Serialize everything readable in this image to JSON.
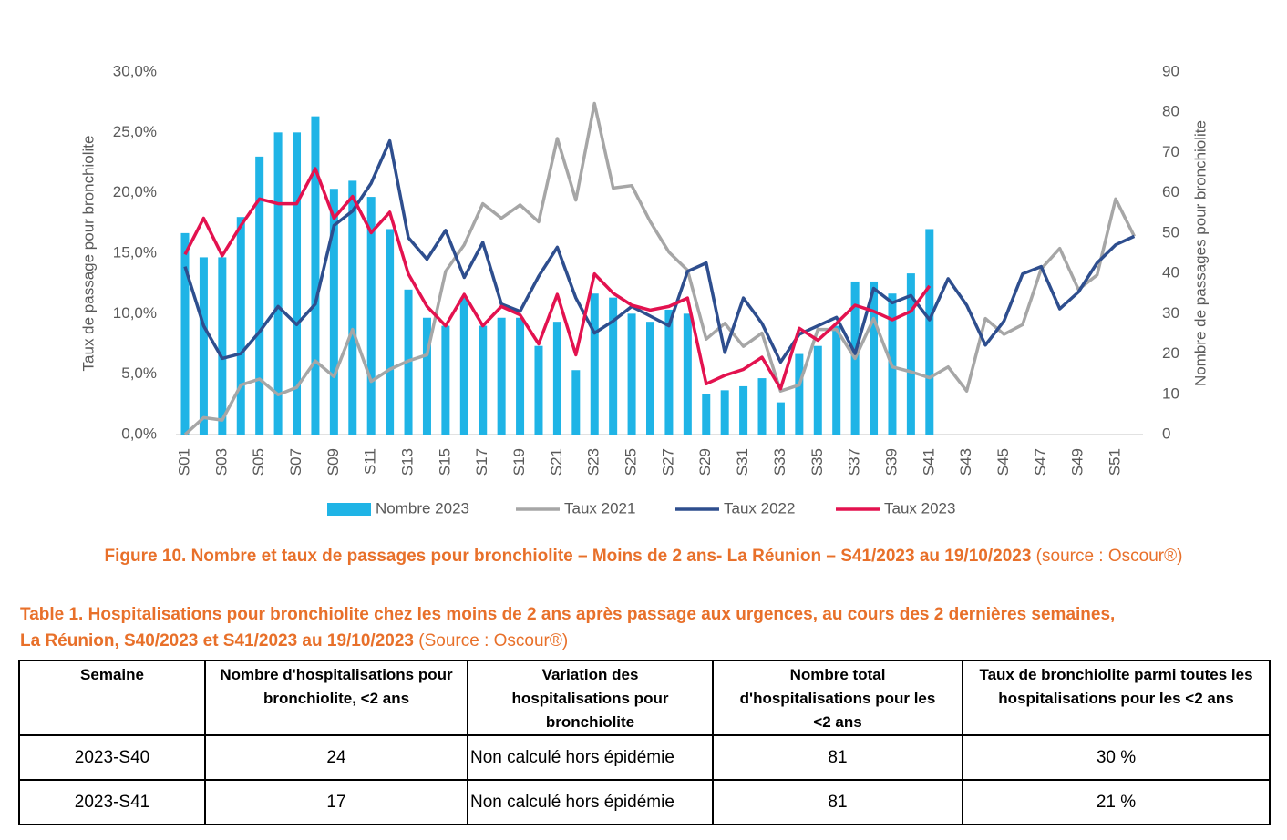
{
  "chart_data": {
    "type": "bar_line",
    "ylabel": "Taux de passage pour bronchiolite",
    "y2label": "Nombre de passages pour bronchiolite",
    "categories": [
      "S01",
      null,
      "S03",
      null,
      "S05",
      null,
      "S07",
      null,
      "S09",
      null,
      "S11",
      null,
      "S13",
      null,
      "S15",
      null,
      "S17",
      null,
      "S19",
      null,
      "S21",
      null,
      "S23",
      null,
      "S25",
      null,
      "S27",
      null,
      "S29",
      null,
      "S31",
      null,
      "S33",
      null,
      "S35",
      null,
      "S37",
      null,
      "S39",
      null,
      "S41",
      null,
      "S43",
      null,
      "S45",
      null,
      "S47",
      null,
      "S49",
      null,
      "S51",
      null
    ],
    "ylim": [
      0,
      30
    ],
    "yticks": [
      {
        "value": 0,
        "label": "0,0%"
      },
      {
        "value": 5,
        "label": "5,0%"
      },
      {
        "value": 10,
        "label": "10,0%"
      },
      {
        "value": 15,
        "label": "15,0%"
      },
      {
        "value": 20,
        "label": "20,0%"
      },
      {
        "value": 25,
        "label": "25,0%"
      },
      {
        "value": 30,
        "label": "30,0%"
      }
    ],
    "y2lim": [
      0,
      90
    ],
    "y2ticks": [
      0,
      10,
      20,
      30,
      40,
      50,
      60,
      70,
      80,
      90
    ],
    "grid": false,
    "legend": "bottom",
    "series": [
      {
        "name": "Nombre 2023",
        "type": "bar",
        "axis": "y2",
        "color": "#1fb4e6",
        "values": [
          50,
          44,
          44,
          54,
          69,
          75,
          75,
          79,
          61,
          63,
          59,
          51,
          36,
          29,
          27,
          34,
          27,
          29,
          29,
          22,
          28,
          16,
          35,
          34,
          30,
          28,
          31,
          30,
          10,
          11,
          12,
          14,
          8,
          20,
          22,
          27,
          38,
          38,
          35,
          40,
          51,
          null,
          null,
          null,
          null,
          null,
          null,
          null,
          null,
          null,
          null,
          null
        ]
      },
      {
        "name": "Taux 2021",
        "type": "line",
        "color": "#a6a6a6",
        "values": [
          0,
          1.4,
          1.2,
          4.1,
          4.6,
          3.3,
          3.9,
          6.1,
          4.8,
          8.7,
          4.4,
          5.4,
          6.1,
          6.6,
          13.5,
          15.7,
          19.1,
          17.9,
          19.0,
          17.6,
          24.5,
          19.4,
          27.4,
          20.4,
          20.6,
          17.6,
          15.1,
          13.6,
          7.9,
          9.2,
          7.3,
          8.4,
          3.6,
          4.1,
          8.7,
          8.7,
          6.3,
          9.6,
          5.6,
          5.2,
          4.7,
          5.6,
          3.6,
          9.6,
          8.3,
          9.1,
          13.7,
          15.4,
          12.0,
          13.2,
          19.5,
          16.4
        ]
      },
      {
        "name": "Taux 2022",
        "type": "line",
        "color": "#2e4e8e",
        "values": [
          13.9,
          9.0,
          6.3,
          6.7,
          8.5,
          10.6,
          9.1,
          10.8,
          17.3,
          18.5,
          20.8,
          24.3,
          16.3,
          14.5,
          16.9,
          13.0,
          15.9,
          10.8,
          10.2,
          13.1,
          15.5,
          11.3,
          8.4,
          9.4,
          10.6,
          9.8,
          9.0,
          13.5,
          14.2,
          6.8,
          11.3,
          9.2,
          6.0,
          8.3,
          9.0,
          9.7,
          6.7,
          12.1,
          10.9,
          11.5,
          9.5,
          12.9,
          10.7,
          7.4,
          9.4,
          13.3,
          13.9,
          10.4,
          11.8,
          14.2,
          15.7,
          16.4
        ]
      },
      {
        "name": "Taux 2023",
        "type": "line",
        "color": "#e3124f",
        "values": [
          14.9,
          17.9,
          14.8,
          17.3,
          19.5,
          19.1,
          19.1,
          22.0,
          17.9,
          19.7,
          16.7,
          18.4,
          13.3,
          10.6,
          9.0,
          11.6,
          9.0,
          10.6,
          9.9,
          7.5,
          11.6,
          6.6,
          13.3,
          11.7,
          10.7,
          10.3,
          10.6,
          11.3,
          4.2,
          4.9,
          5.4,
          6.4,
          3.8,
          8.8,
          7.8,
          9.2,
          10.7,
          10.2,
          9.5,
          10.2,
          12.3,
          null,
          null,
          null,
          null,
          null,
          null,
          null,
          null,
          null,
          null,
          null
        ]
      }
    ]
  },
  "caption": {
    "bold": "Figure 10. Nombre et taux de passages pour bronchiolite – Moins de 2 ans- La Réunion – S41/2023 au 19/10/2023",
    "source": "(source : Oscour®)"
  },
  "table": {
    "title_lines": [
      "Table 1. Hospitalisations pour bronchiolite chez les moins de 2 ans après passage aux urgences, au cours des 2 dernières semaines,",
      "La Réunion, S40/2023 et S41/2023 au 19/10/2023"
    ],
    "source": "(Source : Oscour®)",
    "headers": [
      "Semaine",
      "Nombre d'hospitalisations pour bronchiolite, <2 ans",
      "Variation des hospitalisations pour bronchiolite",
      "Nombre total d'hospitalisations pour les <2 ans",
      "Taux de bronchiolite parmi toutes les hospitalisations pour les <2 ans"
    ],
    "rows": [
      [
        "2023-S40",
        "24",
        "Non calculé hors épidémie",
        "81",
        "30 %"
      ],
      [
        "2023-S41",
        "17",
        "Non calculé hors épidémie",
        "81",
        "21 %"
      ]
    ]
  }
}
